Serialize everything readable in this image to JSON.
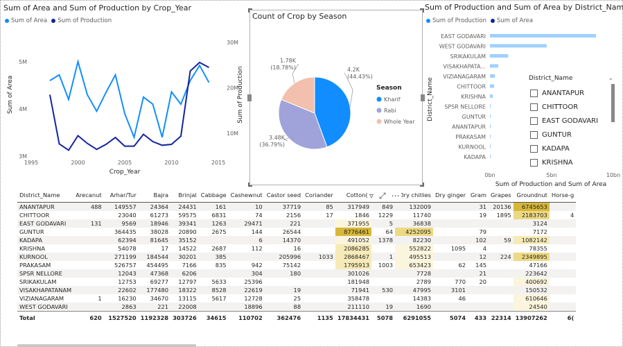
{
  "line_chart": {
    "title": "Sum of Area and Sum of Production by Crop_Year",
    "legend": [
      {
        "label": "Sum of Area",
        "color": "#118dff"
      },
      {
        "label": "Sum of Production",
        "color": "#12239e"
      }
    ]
  },
  "pie_chart": {
    "title": "Count of Crop by Season",
    "legend_title": "Season",
    "legend": [
      {
        "label": "Kharif",
        "color": "#118dff"
      },
      {
        "label": "Rabi",
        "color": "#a0a3d9"
      },
      {
        "label": "Whole Year",
        "color": "#f2c0ad"
      }
    ],
    "labels": [
      {
        "value": "4.2K",
        "pct": "(44.43%)"
      },
      {
        "value": "3.48K",
        "pct": "(36.79%)"
      },
      {
        "value": "1.78K",
        "pct": "(18.78%)"
      }
    ]
  },
  "bar_chart": {
    "title": "Sum of Production and Sum of Area by District_Name",
    "legend": [
      {
        "label": "Sum of Production",
        "color": "#118dff"
      },
      {
        "label": "Sum of Area",
        "color": "#12239e"
      }
    ]
  },
  "slicer": {
    "title": "District_Name",
    "options": [
      "ANANTAPUR",
      "CHITTOOR",
      "EAST GODAVARI",
      "GUNTUR",
      "KADAPA",
      "KRISHNA"
    ]
  },
  "chart_data": [
    {
      "type": "line",
      "title": "Sum of Area and Sum of Production by Crop_Year",
      "xlabel": "Crop_Year",
      "ylabel": "Sum of Area",
      "y2label": "Sum of Production",
      "x": [
        1997,
        1998,
        1999,
        2000,
        2001,
        2002,
        2003,
        2004,
        2005,
        2006,
        2007,
        2008,
        2009,
        2010,
        2011,
        2012,
        2013,
        2014
      ],
      "xlim": [
        1995,
        2015
      ],
      "xticks": [
        "1995",
        "2000",
        "2005",
        "2010",
        "2015"
      ],
      "ylim": [
        3000000,
        5600000
      ],
      "yticks": [
        "3M",
        "4M",
        "5M"
      ],
      "y2lim": [
        5000000,
        32000000
      ],
      "y2ticks": [
        "10M",
        "20M",
        "30M"
      ],
      "series": [
        {
          "name": "Sum of Area",
          "axis": "left",
          "color": "#118dff",
          "values": [
            4600000,
            4720000,
            4200000,
            5000000,
            4300000,
            3950000,
            4350000,
            4720000,
            3900000,
            3400000,
            4250000,
            4100000,
            3400000,
            4360000,
            4100000,
            4600000,
            4920000,
            4560000
          ]
        },
        {
          "name": "Sum of Production",
          "axis": "right",
          "color": "#12239e",
          "values": [
            18500000,
            7700000,
            6300000,
            9500000,
            7800000,
            6500000,
            7600000,
            9100000,
            7200000,
            7200000,
            9800000,
            8200000,
            7400000,
            7600000,
            9400000,
            23700000,
            25600000,
            24500000
          ]
        }
      ]
    },
    {
      "type": "pie",
      "title": "Count of Crop by Season",
      "categories": [
        "Kharif",
        "Rabi",
        "Whole Year"
      ],
      "values": [
        4200,
        3480,
        1780
      ],
      "legend_position": "right"
    },
    {
      "type": "bar",
      "title": "Sum of Production and Sum of Area by District_Name",
      "orientation": "horizontal",
      "xlabel": "Sum of Production and Sum of Area",
      "ylabel": "District_Name",
      "xlim": [
        0,
        10000000000
      ],
      "xticks": [
        "0bn",
        "5bn",
        "10bn"
      ],
      "categories": [
        "EAST GODAVARI",
        "WEST GODAVARI",
        "SRIKAKULAM",
        "VISAKHAPATA...",
        "VIZIANAGARAM",
        "CHITTOOR",
        "KRISHNA",
        "SPSR NELLORE",
        "GUNTUR",
        "ANANTAPUR",
        "PRAKASAM",
        "KURNOOL",
        "KADAPA"
      ],
      "series": [
        {
          "name": "Sum of Production",
          "color": "#9fd0ff",
          "values": [
            8600000000,
            4600000000,
            1480000000,
            670000000,
            400000000,
            340000000,
            230000000,
            60000000,
            50000000,
            40000000,
            40000000,
            30000000,
            30000000
          ]
        },
        {
          "name": "Sum of Area",
          "color": "#12239e",
          "values": [
            0,
            0,
            0,
            0,
            0,
            0,
            0,
            0,
            0,
            0,
            0,
            0,
            0
          ]
        }
      ]
    },
    {
      "type": "table",
      "columns": [
        "District_Name",
        "Arecanut",
        "Arhar/Tur",
        "Bajra",
        "Brinjal",
        "Cabbage",
        "Cashewnut",
        "Castor seed",
        "Coriander",
        "Cotton(l",
        "",
        "Dry chillies",
        "Dry ginger",
        "Gram",
        "Grapes",
        "Groundnut",
        "Horse-g"
      ],
      "rows": [
        [
          "ANANTAPUR",
          "488",
          "149557",
          "24364",
          "24431",
          "161",
          "10",
          "37719",
          "85",
          "317949",
          "849",
          "132009",
          "",
          "31",
          "20136",
          "6745653",
          ""
        ],
        [
          "CHITTOOR",
          "",
          "23040",
          "61273",
          "59575",
          "6831",
          "74",
          "2156",
          "17",
          "1846",
          "1229",
          "11740",
          "",
          "19",
          "1895",
          "2183703",
          "4"
        ],
        [
          "EAST GODAVARI",
          "131",
          "9569",
          "18946",
          "39341",
          "1263",
          "29471",
          "221",
          "",
          "371955",
          "5",
          "36838",
          "",
          "",
          "",
          "3124",
          ""
        ],
        [
          "GUNTUR",
          "",
          "364435",
          "38028",
          "20890",
          "2675",
          "144",
          "26544",
          "",
          "8776461",
          "64",
          "4252095",
          "",
          "79",
          "",
          "7172",
          ""
        ],
        [
          "KADAPA",
          "",
          "62394",
          "81645",
          "35152",
          "",
          "6",
          "14370",
          "",
          "491052",
          "1378",
          "82230",
          "",
          "102",
          "59",
          "1082142",
          ""
        ],
        [
          "KRISHNA",
          "",
          "54078",
          "17",
          "14522",
          "2687",
          "112",
          "16",
          "",
          "2086285",
          "",
          "552822",
          "1095",
          "4",
          "",
          "78355",
          ""
        ],
        [
          "KURNOOL",
          "",
          "271199",
          "184544",
          "30201",
          "385",
          "",
          "205996",
          "1033",
          "2868467",
          "1",
          "495513",
          "",
          "12",
          "224",
          "2349895",
          ""
        ],
        [
          "PRAKASAM",
          "",
          "526757",
          "454495",
          "7166",
          "835",
          "942",
          "75142",
          "",
          "1795913",
          "1003",
          "653423",
          "62",
          "145",
          "",
          "47166",
          ""
        ],
        [
          "SPSR NELLORE",
          "",
          "12043",
          "47368",
          "6206",
          "",
          "304",
          "180",
          "",
          "301026",
          "",
          "7728",
          "",
          "21",
          "",
          "223642",
          ""
        ],
        [
          "SRIKAKULAM",
          "",
          "12753",
          "69277",
          "12797",
          "5633",
          "25396",
          "",
          "",
          "181948",
          "",
          "2789",
          "770",
          "20",
          "",
          "400692",
          ""
        ],
        [
          "VISAKHAPATANAM",
          "",
          "22602",
          "177480",
          "18322",
          "8528",
          "22619",
          "19",
          "",
          "71941",
          "530",
          "47995",
          "3101",
          "",
          "",
          "150532",
          ""
        ],
        [
          "VIZIANAGARAM",
          "1",
          "16230",
          "34670",
          "13115",
          "5617",
          "12728",
          "25",
          "",
          "358478",
          "",
          "14383",
          "46",
          "",
          "",
          "610646",
          ""
        ],
        [
          "WEST GODAVARI",
          "",
          "2863",
          "221",
          "22008",
          "",
          "18896",
          "88",
          "",
          "211110",
          "19",
          "1690",
          "",
          "",
          "",
          "24540",
          ""
        ]
      ],
      "total": [
        "Total",
        "620",
        "1527520",
        "1192328",
        "303726",
        "34615",
        "110702",
        "362476",
        "1135",
        "17834431",
        "5078",
        "6291055",
        "5074",
        "433",
        "22314",
        "13907262",
        "6("
      ]
    }
  ]
}
